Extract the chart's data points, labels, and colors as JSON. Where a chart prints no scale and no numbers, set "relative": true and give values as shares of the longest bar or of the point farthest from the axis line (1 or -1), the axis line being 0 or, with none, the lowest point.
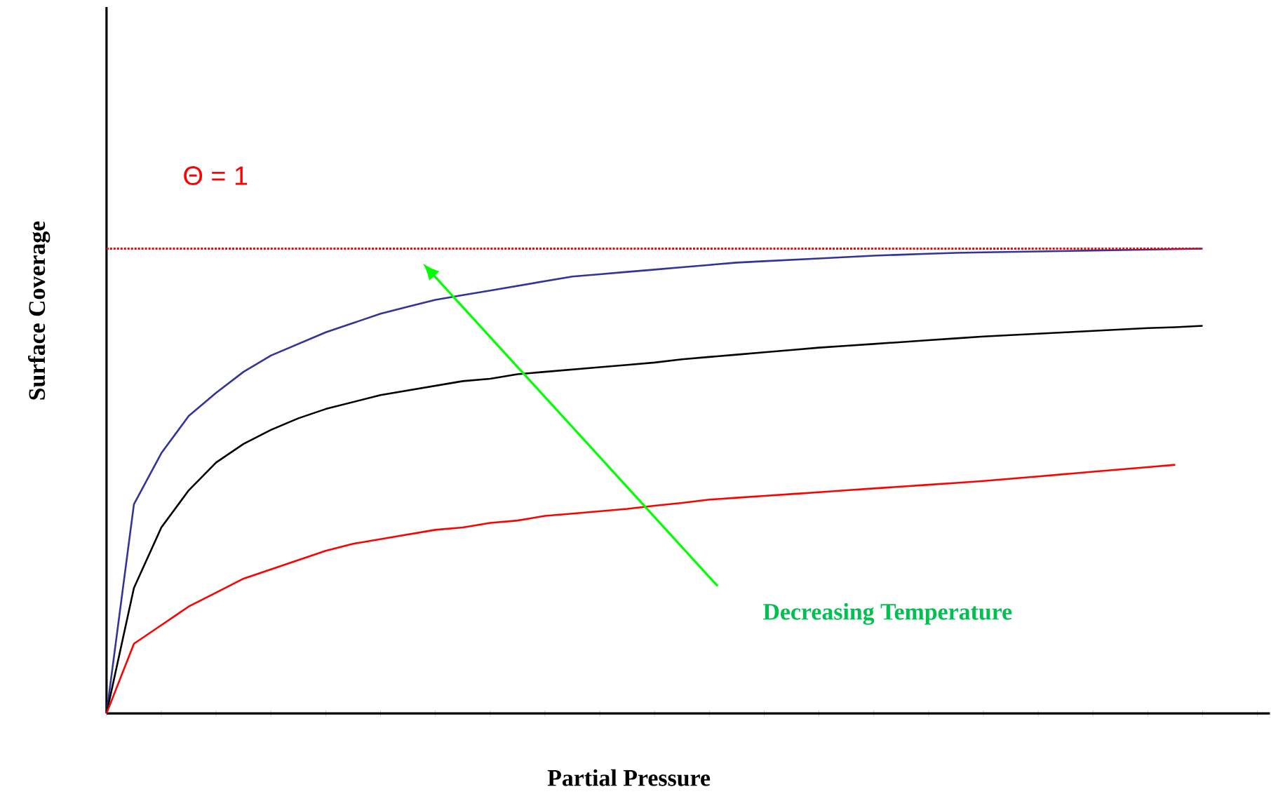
{
  "chart_data": {
    "type": "line",
    "relative": true,
    "xlabel": "Partial Pressure",
    "ylabel": "Surface Coverage",
    "categories": [
      null,
      null,
      null,
      null,
      null,
      null,
      null,
      null,
      null,
      null,
      null,
      null,
      null,
      null,
      null,
      null,
      null,
      null,
      null,
      null,
      null,
      null,
      null,
      null,
      null,
      null,
      null,
      null,
      null,
      null,
      null,
      null,
      null,
      null,
      null,
      null,
      null,
      null,
      null,
      null,
      null
    ],
    "series": [
      {
        "color": "#333399",
        "values": [
          0,
          0.45,
          0.56,
          0.64,
          0.69,
          0.735,
          0.77,
          0.795,
          0.82,
          0.84,
          0.86,
          0.875,
          0.89,
          0.9,
          0.91,
          0.92,
          0.93,
          0.94,
          0.945,
          0.95,
          0.955,
          0.96,
          0.965,
          0.97,
          0.973,
          0.976,
          0.979,
          0.982,
          0.985,
          0.987,
          0.989,
          0.991,
          0.992,
          0.993,
          0.994,
          0.995,
          0.996,
          0.997,
          0.998,
          0.999,
          1.0
        ]
      },
      {
        "color": "#000000",
        "values": [
          0,
          0.27,
          0.4,
          0.48,
          0.54,
          0.58,
          0.61,
          0.635,
          0.655,
          0.67,
          0.685,
          0.695,
          0.705,
          0.715,
          0.72,
          0.73,
          0.735,
          0.74,
          0.745,
          0.75,
          0.755,
          0.762,
          0.767,
          0.772,
          0.777,
          0.782,
          0.787,
          0.791,
          0.795,
          0.799,
          0.803,
          0.807,
          0.811,
          0.814,
          0.817,
          0.82,
          0.823,
          0.826,
          0.829,
          0.831,
          0.834
        ]
      },
      {
        "color": "#ff0000",
        "values": [
          0,
          0.15,
          0.19,
          0.23,
          0.26,
          0.29,
          0.31,
          0.33,
          0.35,
          0.365,
          0.375,
          0.385,
          0.395,
          0.4,
          0.41,
          0.415,
          0.425,
          0.43,
          0.435,
          0.44,
          0.447,
          0.453,
          0.46,
          0.464,
          0.468,
          0.472,
          0.476,
          0.48,
          0.484,
          0.488,
          0.492,
          0.496,
          0.5,
          0.505,
          0.51,
          0.515,
          0.52,
          0.525,
          0.53,
          0.535,
          null
        ]
      }
    ],
    "ref_lines": [
      {
        "axis": "y",
        "value": 1.0,
        "label": "Θ = 1",
        "color": "#ff0000",
        "line_style": "dotted"
      }
    ],
    "annotations": [
      "Decreasing Temperature"
    ],
    "marker": "none",
    "line_style": "solid"
  }
}
